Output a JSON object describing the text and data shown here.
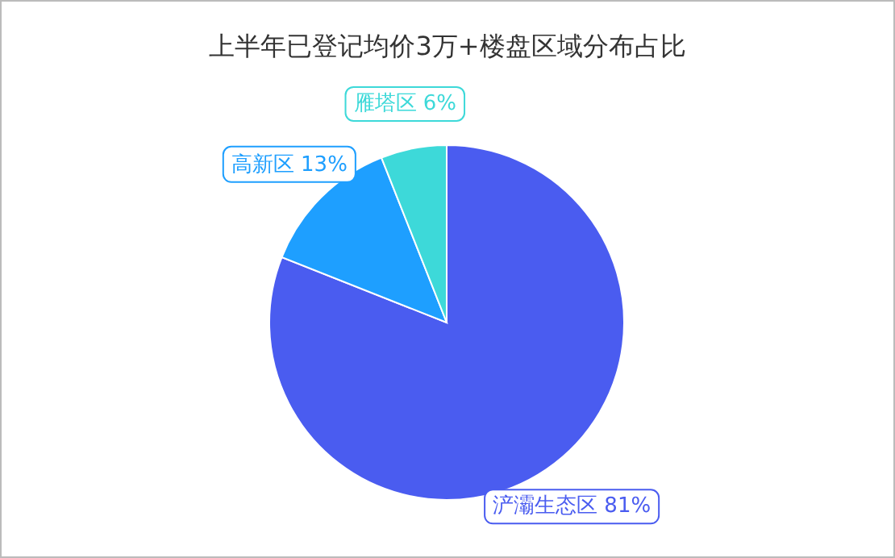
{
  "chart_data": {
    "type": "pie",
    "title": "上半年已登记均价3万+楼盘区域分布占比",
    "categories": [
      "浐灞生态区",
      "高新区",
      "雁塔区"
    ],
    "values": [
      81,
      13,
      6
    ],
    "value_labels": [
      "81%",
      "13%",
      "6%"
    ],
    "colors": [
      "#4a5cf0",
      "#1e9fff",
      "#3dd9d9"
    ]
  }
}
